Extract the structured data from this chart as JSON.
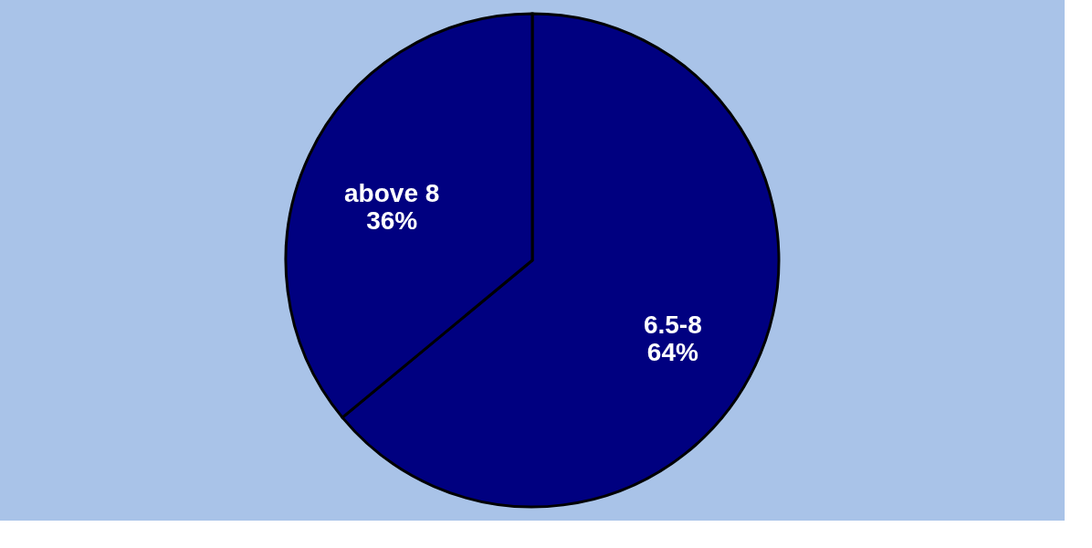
{
  "chart_data": {
    "type": "pie",
    "categories": [
      "6.5-8",
      "above 8"
    ],
    "values": [
      64,
      36
    ],
    "value_labels": [
      "64%",
      "36%"
    ],
    "colors": [
      "#000080",
      "#000080"
    ],
    "legend": false
  }
}
